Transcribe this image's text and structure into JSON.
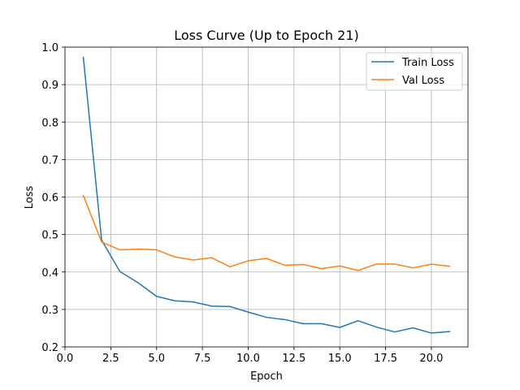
{
  "chart_data": {
    "type": "line",
    "title": "Loss Curve (Up to Epoch 21)",
    "xlabel": "Epoch",
    "ylabel": "Loss",
    "xlim": [
      0.0,
      22.0
    ],
    "ylim": [
      0.2,
      1.0
    ],
    "x_ticks": [
      0.0,
      2.5,
      5.0,
      7.5,
      10.0,
      12.5,
      15.0,
      17.5,
      20.0
    ],
    "x_tick_labels": [
      "0.0",
      "2.5",
      "5.0",
      "7.5",
      "10.0",
      "12.5",
      "15.0",
      "17.5",
      "20.0"
    ],
    "y_ticks": [
      0.2,
      0.3,
      0.4,
      0.5,
      0.6,
      0.7,
      0.8,
      0.9,
      1.0
    ],
    "y_tick_labels": [
      "0.2",
      "0.3",
      "0.4",
      "0.5",
      "0.6",
      "0.7",
      "0.8",
      "0.9",
      "1.0"
    ],
    "grid": true,
    "legend_position": "top-right",
    "x": [
      1,
      2,
      3,
      4,
      5,
      6,
      7,
      8,
      9,
      10,
      11,
      12,
      13,
      14,
      15,
      16,
      17,
      18,
      19,
      20,
      21
    ],
    "series": [
      {
        "name": "Train Loss",
        "color": "#1f77b4",
        "values": [
          0.973,
          0.485,
          0.401,
          0.371,
          0.335,
          0.323,
          0.32,
          0.309,
          0.308,
          0.293,
          0.279,
          0.273,
          0.262,
          0.262,
          0.252,
          0.27,
          0.253,
          0.24,
          0.251,
          0.237,
          0.241
        ]
      },
      {
        "name": "Val Loss",
        "color": "#ff7f0e",
        "values": [
          0.604,
          0.48,
          0.459,
          0.461,
          0.459,
          0.44,
          0.432,
          0.438,
          0.414,
          0.43,
          0.436,
          0.418,
          0.42,
          0.409,
          0.416,
          0.404,
          0.421,
          0.421,
          0.411,
          0.421,
          0.415
        ]
      }
    ]
  }
}
